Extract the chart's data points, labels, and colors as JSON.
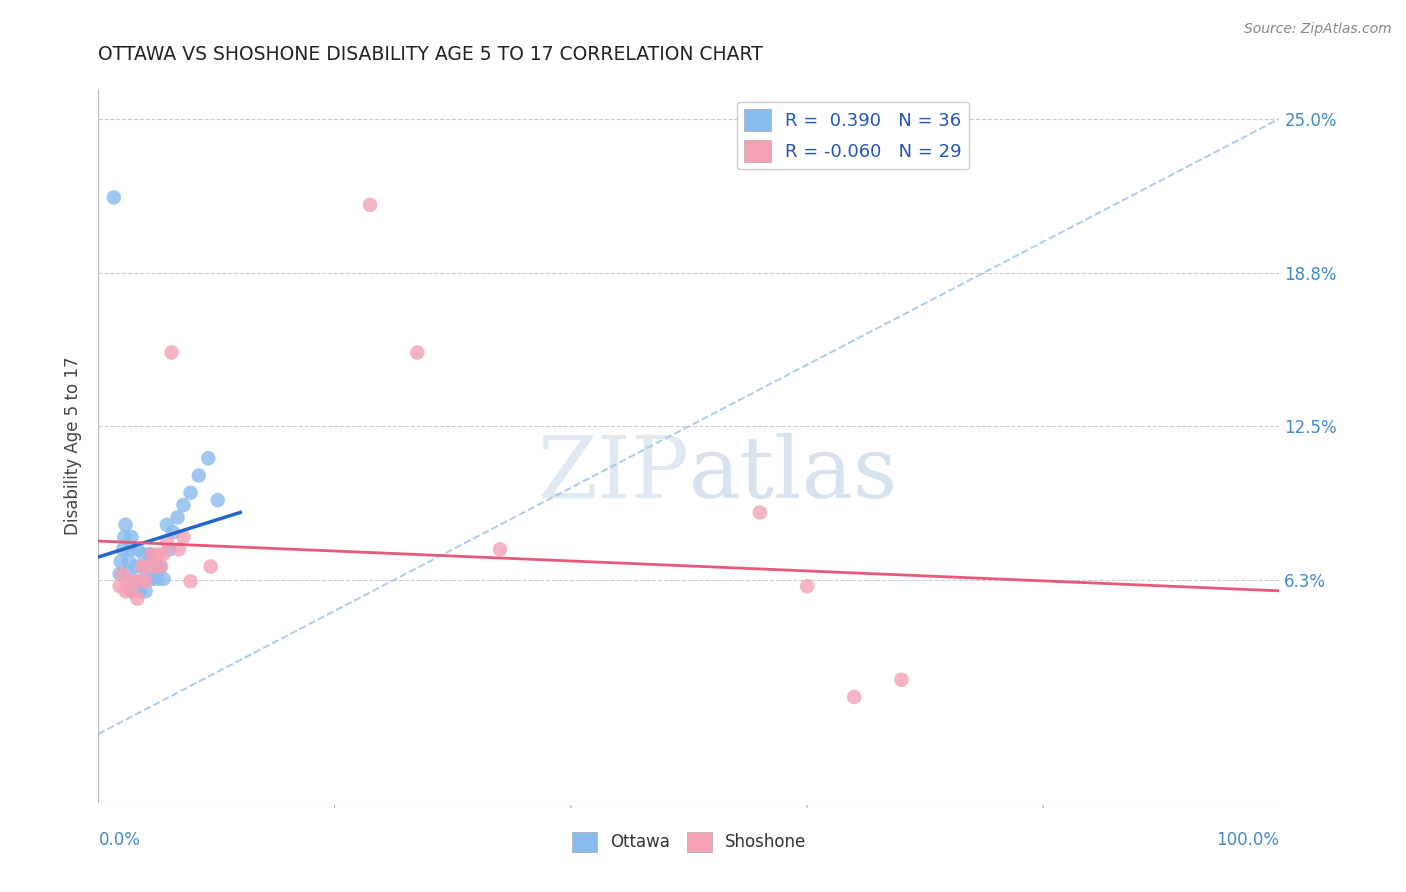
{
  "title": "OTTAWA VS SHOSHONE DISABILITY AGE 5 TO 17 CORRELATION CHART",
  "source": "Source: ZipAtlas.com",
  "ylabel": "Disability Age 5 to 17",
  "xlim": [
    0.0,
    1.0
  ],
  "ylim": [
    -0.028,
    0.262
  ],
  "ottawa_R": 0.39,
  "ottawa_N": 36,
  "shoshone_R": -0.06,
  "shoshone_N": 29,
  "ottawa_color": "#88bbee",
  "shoshone_color": "#f4a0b5",
  "ottawa_line_color": "#2266cc",
  "shoshone_line_color": "#e85878",
  "diag_line_color": "#aaccee",
  "watermark_zip": "ZIP",
  "watermark_atlas": "atlas",
  "ytick_vals": [
    0.0,
    0.0625,
    0.125,
    0.1875,
    0.25
  ],
  "ytick_labels_right": [
    "",
    "6.3%",
    "12.5%",
    "18.8%",
    "25.0%"
  ],
  "xtick_label_color": "#4488cc",
  "ytick_label_color": "#4488cc",
  "background_color": "#ffffff",
  "grid_color": "#cccccc",
  "ottawa_x": [
    0.013,
    0.018,
    0.019,
    0.021,
    0.022,
    0.023,
    0.025,
    0.026,
    0.027,
    0.028,
    0.03,
    0.031,
    0.032,
    0.033,
    0.035,
    0.036,
    0.037,
    0.038,
    0.04,
    0.04,
    0.042,
    0.043,
    0.045,
    0.047,
    0.05,
    0.052,
    0.055,
    0.058,
    0.06,
    0.063,
    0.067,
    0.072,
    0.078,
    0.085,
    0.093,
    0.101
  ],
  "ottawa_y": [
    0.218,
    0.065,
    0.07,
    0.075,
    0.08,
    0.085,
    0.065,
    0.07,
    0.075,
    0.08,
    0.058,
    0.062,
    0.068,
    0.075,
    0.058,
    0.062,
    0.068,
    0.073,
    0.058,
    0.063,
    0.068,
    0.073,
    0.063,
    0.068,
    0.063,
    0.068,
    0.063,
    0.085,
    0.075,
    0.082,
    0.088,
    0.093,
    0.098,
    0.105,
    0.112,
    0.095
  ],
  "shoshone_x": [
    0.018,
    0.02,
    0.023,
    0.025,
    0.028,
    0.03,
    0.033,
    0.035,
    0.037,
    0.04,
    0.042,
    0.045,
    0.047,
    0.05,
    0.053,
    0.055,
    0.058,
    0.062,
    0.068,
    0.072,
    0.078,
    0.095,
    0.23,
    0.27,
    0.34,
    0.56,
    0.6,
    0.64,
    0.68
  ],
  "shoshone_y": [
    0.06,
    0.065,
    0.058,
    0.062,
    0.058,
    0.062,
    0.055,
    0.062,
    0.068,
    0.062,
    0.068,
    0.073,
    0.068,
    0.073,
    0.068,
    0.073,
    0.078,
    0.155,
    0.075,
    0.08,
    0.062,
    0.068,
    0.215,
    0.155,
    0.075,
    0.09,
    0.06,
    0.015,
    0.022
  ]
}
